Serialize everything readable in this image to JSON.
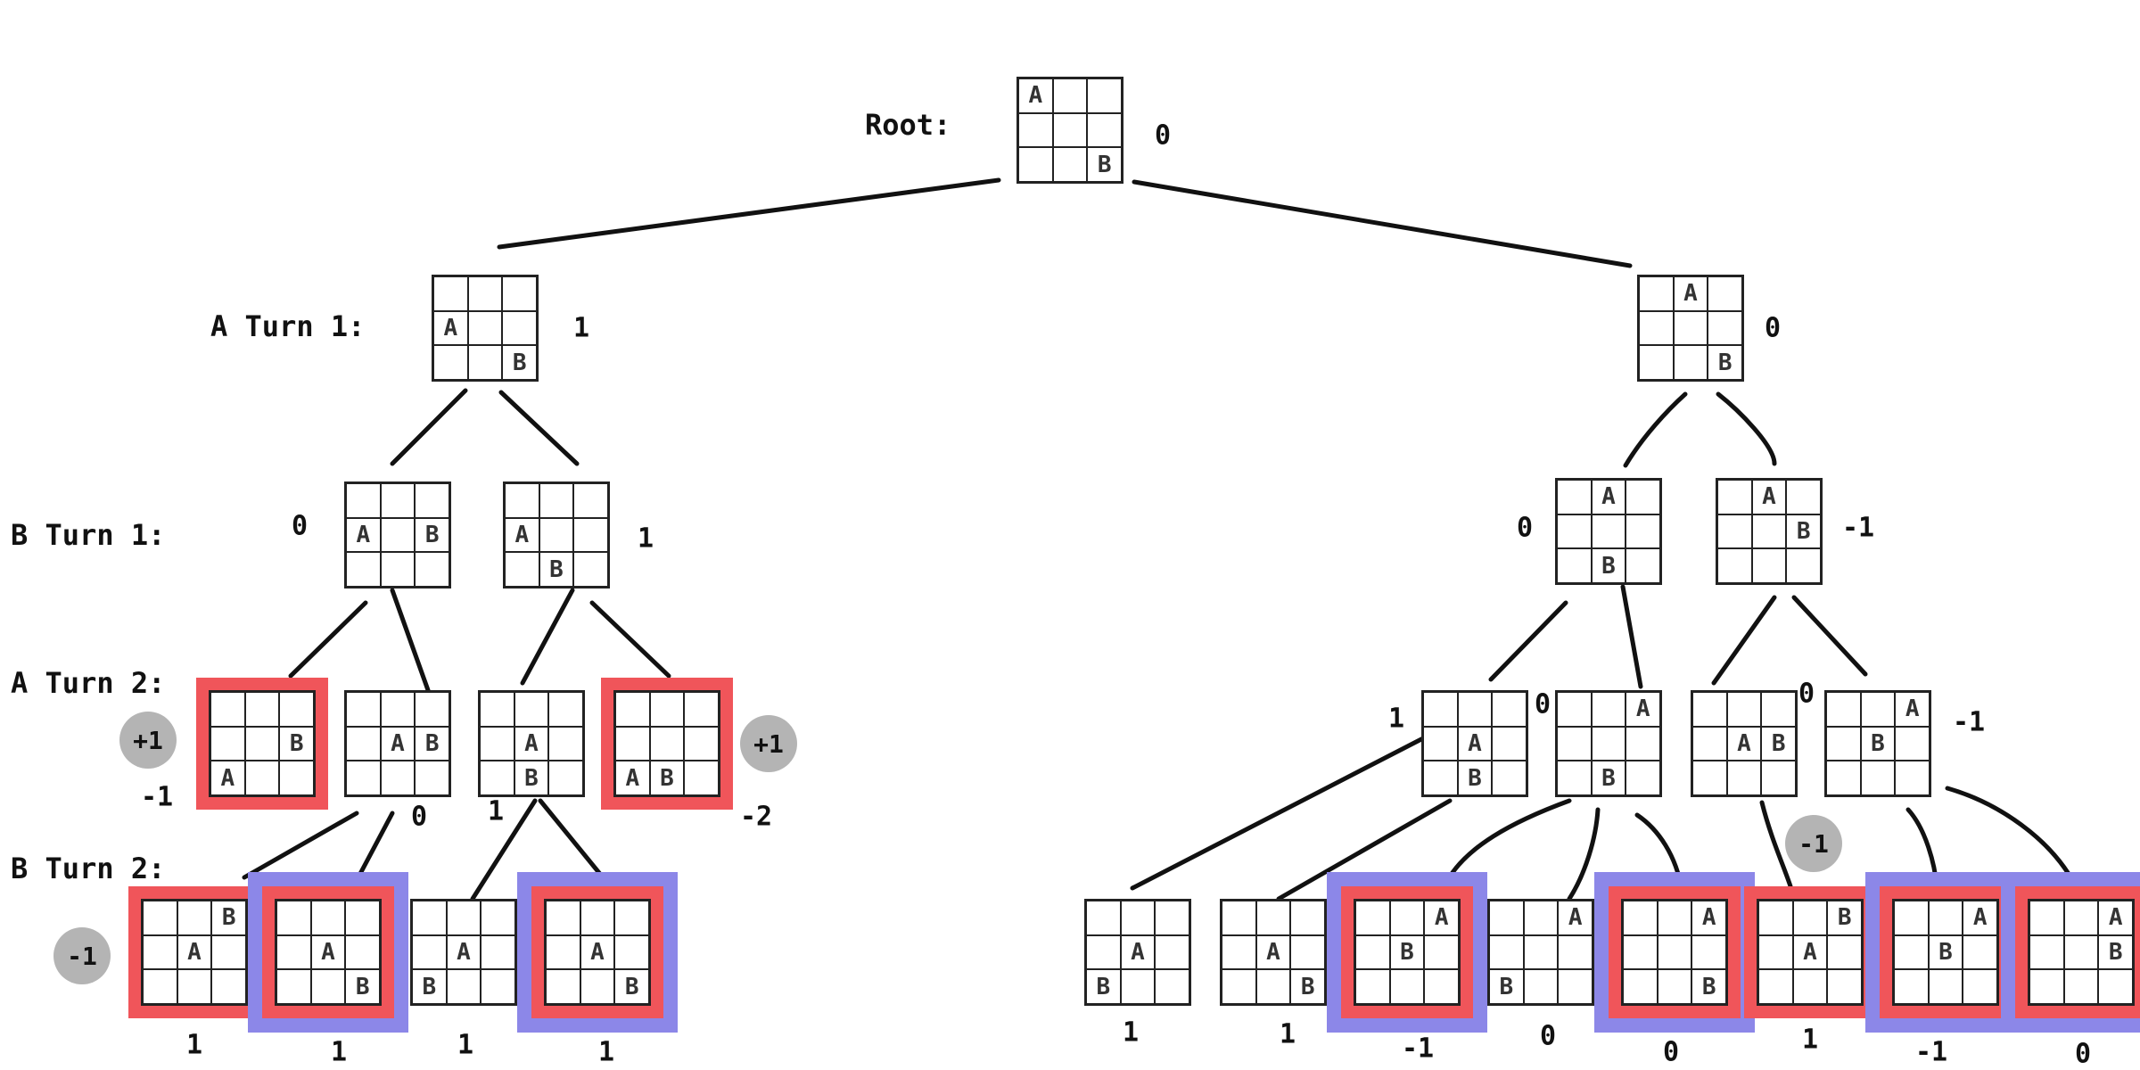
{
  "levels": {
    "root": "Root:",
    "a_turn_1": "A Turn 1:",
    "b_turn_1": "B Turn 1:",
    "a_turn_2": "A Turn 2:",
    "b_turn_2": "B Turn 2:"
  },
  "nodes": {
    "root": {
      "cells": [
        "A",
        "",
        "",
        "",
        "",
        "",
        "",
        "",
        "B"
      ],
      "score": "0"
    },
    "l1a": {
      "cells": [
        "",
        "",
        "",
        "A",
        "",
        "",
        "",
        "",
        "B"
      ],
      "score": "1"
    },
    "l1b": {
      "cells": [
        "",
        "A",
        "",
        "",
        "",
        "",
        "",
        "",
        "B"
      ],
      "score": "0"
    },
    "l2a": {
      "cells": [
        "",
        "",
        "",
        "A",
        "",
        "B",
        "",
        "",
        ""
      ],
      "score": "0"
    },
    "l2b": {
      "cells": [
        "",
        "",
        "",
        "A",
        "",
        "",
        "",
        "B",
        ""
      ],
      "score": "1"
    },
    "l2c": {
      "cells": [
        "",
        "A",
        "",
        "",
        "",
        "",
        "",
        "B",
        ""
      ],
      "score": "0"
    },
    "l2d": {
      "cells": [
        "",
        "A",
        "",
        "",
        "",
        "B",
        "",
        "",
        ""
      ],
      "score": "-1"
    },
    "l3a": {
      "cells": [
        "",
        "",
        "",
        "",
        "",
        "B",
        "A",
        "",
        ""
      ],
      "score": "-1",
      "bubble": "+1"
    },
    "l3b": {
      "cells": [
        "",
        "",
        "",
        "",
        "A",
        "B",
        "",
        "",
        ""
      ],
      "score": "0"
    },
    "l3c": {
      "cells": [
        "",
        "",
        "",
        "",
        "A",
        "",
        "",
        "B",
        ""
      ],
      "score": "1"
    },
    "l3d": {
      "cells": [
        "",
        "",
        "",
        "",
        "",
        "",
        "A",
        "B",
        ""
      ],
      "score": "-2",
      "bubble": "+1"
    },
    "l3e": {
      "cells": [
        "",
        "",
        "",
        "",
        "A",
        "",
        "",
        "B",
        ""
      ],
      "score": "1"
    },
    "l3f": {
      "cells": [
        "",
        "",
        "A",
        "",
        "",
        "",
        "",
        "B",
        ""
      ],
      "score": "0"
    },
    "l3g": {
      "cells": [
        "",
        "",
        "",
        "",
        "A",
        "B",
        "",
        "",
        ""
      ],
      "score": "0"
    },
    "l3h": {
      "cells": [
        "",
        "",
        "A",
        "",
        "B",
        "",
        "",
        "",
        ""
      ],
      "score": "-1",
      "bubble": "-1"
    },
    "l4a": {
      "cells": [
        "",
        "",
        "B",
        "",
        "A",
        "",
        "",
        "",
        ""
      ],
      "score": "1",
      "bubble": "-1"
    },
    "l4b": {
      "cells": [
        "",
        "",
        "",
        "",
        "A",
        "",
        "",
        "",
        "B"
      ],
      "score": "1"
    },
    "l4c": {
      "cells": [
        "",
        "",
        "",
        "",
        "A",
        "",
        "B",
        "",
        ""
      ],
      "score": "1"
    },
    "l4d": {
      "cells": [
        "",
        "",
        "",
        "",
        "A",
        "",
        "",
        "",
        "B"
      ],
      "score": "1"
    },
    "l4e": {
      "cells": [
        "",
        "",
        "",
        "",
        "A",
        "",
        "B",
        "",
        ""
      ],
      "score": "1"
    },
    "l4f": {
      "cells": [
        "",
        "",
        "",
        "",
        "A",
        "",
        "",
        "",
        "B"
      ],
      "score": "1"
    },
    "l4g": {
      "cells": [
        "",
        "",
        "A",
        "",
        "B",
        "",
        "",
        "",
        ""
      ],
      "score": "-1"
    },
    "l4h": {
      "cells": [
        "",
        "",
        "A",
        "",
        "",
        "",
        "B",
        "",
        ""
      ],
      "score": "0"
    },
    "l4i": {
      "cells": [
        "",
        "",
        "A",
        "",
        "",
        "",
        "",
        "",
        "B"
      ],
      "score": "0"
    },
    "l4j": {
      "cells": [
        "",
        "",
        "B",
        "",
        "A",
        "",
        "",
        "",
        ""
      ],
      "score": "1"
    },
    "l4k": {
      "cells": [
        "",
        "",
        "A",
        "",
        "B",
        "",
        "",
        "",
        ""
      ],
      "score": "-1"
    },
    "l4l": {
      "cells": [
        "",
        "",
        "A",
        "",
        "",
        "B",
        "",
        "",
        ""
      ],
      "score": "0"
    }
  }
}
